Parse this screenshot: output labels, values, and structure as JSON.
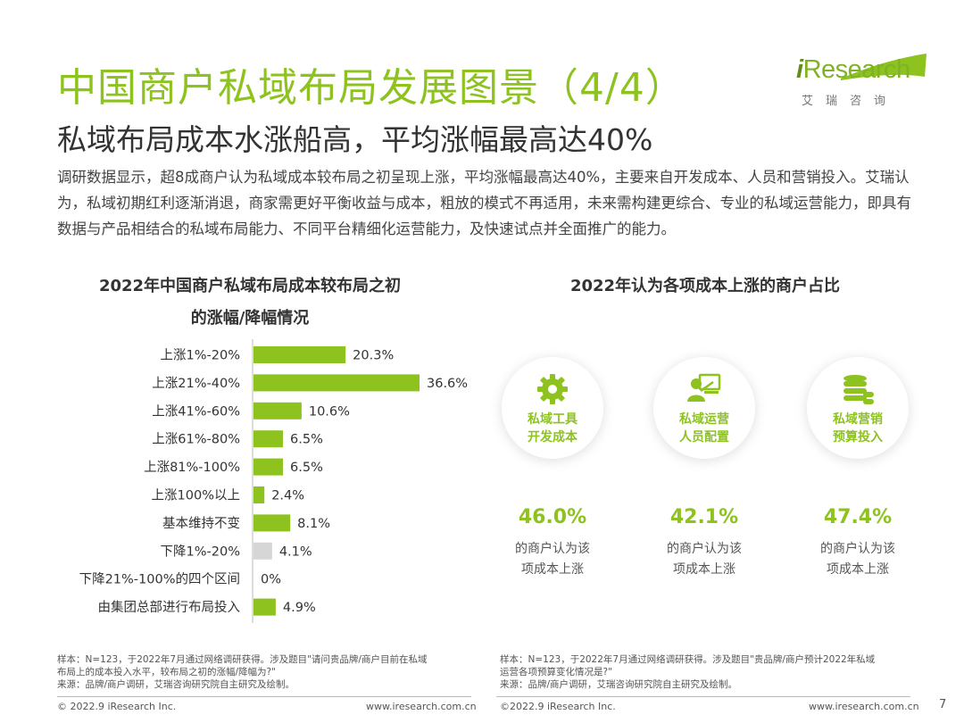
{
  "header": {
    "title": "中国商户私域布局发展图景（4/4）",
    "subtitle": "私域布局成本水涨船高，平均涨幅最高达40%",
    "intro": "调研数据显示，超8成商户认为私域成本较布局之初呈现上涨，平均涨幅最高达40%，主要来自开发成本、人员和营销投入。艾瑞认为，私域初期红利逐渐消退，商家需更好平衡收益与成本，粗放的模式不再适用，未来需构建更综合、专业的私域运营能力，即具有数据与产品相结合的私域布局能力、不同平台精细化运营能力，及快速试点并全面推广的能力。"
  },
  "logo": {
    "brand_prefix": "i",
    "brand_rest": "Research",
    "brand_cn": "艾瑞咨询"
  },
  "chart_data": [
    {
      "type": "bar",
      "orientation": "horizontal",
      "title": "2022年中国商户私域布局成本较布局之初",
      "title_line2": "的涨幅/降幅情况",
      "categories": [
        "上涨1%-20%",
        "上涨21%-40%",
        "上涨41%-60%",
        "上涨61%-80%",
        "上涨81%-100%",
        "上涨100%以上",
        "基本维持不变",
        "下降1%-20%",
        "下降21%-100%的四个区间",
        "由集团总部进行布局投入"
      ],
      "values": [
        20.3,
        36.6,
        10.6,
        6.5,
        6.5,
        2.4,
        8.1,
        4.1,
        0,
        4.9
      ],
      "value_labels": [
        "20.3%",
        "36.6%",
        "10.6%",
        "6.5%",
        "6.5%",
        "2.4%",
        "8.1%",
        "4.1%",
        "0%",
        "4.9%"
      ],
      "bar_colors": [
        "#8dc21f",
        "#8dc21f",
        "#8dc21f",
        "#8dc21f",
        "#8dc21f",
        "#8dc21f",
        "#8dc21f",
        "#d6d6d6",
        "#8dc21f",
        "#8dc21f"
      ],
      "xlim": [
        0,
        40
      ]
    },
    {
      "type": "table",
      "title": "2022年认为各项成本上涨的商户占比",
      "items": [
        {
          "label_line1": "私域工具",
          "label_line2": "开发成本",
          "icon": "gear-icon",
          "value": 46.0,
          "value_label": "46.0%",
          "desc_line1": "的商户认为该",
          "desc_line2": "项成本上涨"
        },
        {
          "label_line1": "私域运营",
          "label_line2": "人员配置",
          "icon": "staff-presenter-icon",
          "value": 42.1,
          "value_label": "42.1%",
          "desc_line1": "的商户认为该",
          "desc_line2": "项成本上涨"
        },
        {
          "label_line1": "私域营销",
          "label_line2": "预算投入",
          "icon": "coins-stack-icon",
          "value": 47.4,
          "value_label": "47.4%",
          "desc_line1": "的商户认为该",
          "desc_line2": "项成本上涨"
        }
      ]
    }
  ],
  "notes": {
    "left": [
      "样本：N=123，于2022年7月通过网络调研获得。涉及题目\"请问贵品牌/商户目前在私域",
      "布局上的成本投入水平，较布局之初的涨幅/降幅为?\"",
      "来源：品牌/商户调研，艾瑞咨询研究院自主研究及绘制。"
    ],
    "right": [
      "样本：N=123，于2022年7月通过网络调研获得。涉及题目\"贵品牌/商户预计2022年私域",
      "运营各项预算变化情况是?\"",
      "来源：品牌/商户调研，艾瑞咨询研究院自主研究及绘制。"
    ]
  },
  "footer": {
    "left_copyright": "© 2022.9 iResearch Inc.",
    "left_url": "www.iresearch.com.cn",
    "right_copyright": "©2022.9 iResearch Inc.",
    "right_url": "www.iresearch.com.cn",
    "page_number": "7"
  },
  "colors": {
    "accent": "#8dc21f",
    "muted_bar": "#d6d6d6",
    "text": "#333333"
  }
}
